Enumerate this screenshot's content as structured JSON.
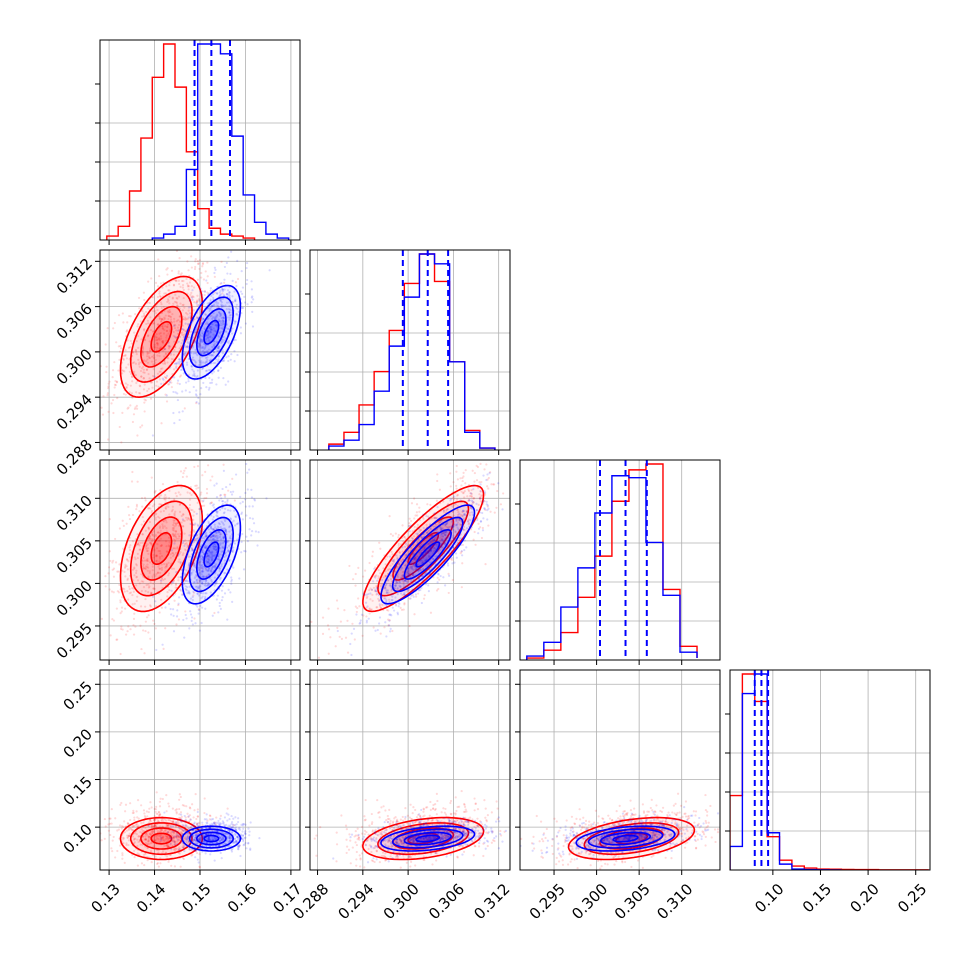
{
  "chart_data": {
    "type": "corner",
    "title": "",
    "n_params": 4,
    "grid": true,
    "colors": {
      "sample_a": "#ff0000",
      "sample_b": "#0000ff"
    },
    "quantile_line_style": "dashed",
    "params": [
      {
        "label": "",
        "range": [
          0.128,
          0.172
        ],
        "ticks": [
          0.13,
          0.14,
          0.15,
          0.16,
          0.17
        ],
        "tick_labels": [
          "0.13",
          "0.14",
          "0.15",
          "0.16",
          "0.17"
        ]
      },
      {
        "label": "",
        "range": [
          0.287,
          0.3135
        ],
        "ticks": [
          0.288,
          0.294,
          0.3,
          0.306,
          0.312
        ],
        "tick_labels": [
          "0.288",
          "0.294",
          "0.300",
          "0.306",
          "0.312"
        ]
      },
      {
        "label": "",
        "range": [
          0.291,
          0.3145
        ],
        "ticks": [
          0.295,
          0.3,
          0.305,
          0.31
        ],
        "tick_labels": [
          "0.295",
          "0.300",
          "0.305",
          "0.310"
        ]
      },
      {
        "label": "",
        "range": [
          0.055,
          0.265
        ],
        "ticks": [
          0.1,
          0.15,
          0.2,
          0.25
        ],
        "tick_labels": [
          "0.10",
          "0.15",
          "0.20",
          "0.25"
        ]
      }
    ],
    "series": [
      {
        "color": "#ff0000",
        "mean": [
          0.1415,
          0.302,
          0.3041,
          0.088
        ],
        "std": [
          0.0045,
          0.004,
          0.0037,
          0.011
        ],
        "corr": [
          [
            1,
            0.55,
            0.45,
            0.0
          ],
          [
            0.55,
            1,
            0.85,
            0.35
          ],
          [
            0.45,
            0.85,
            1,
            0.4
          ],
          [
            0.0,
            0.35,
            0.4,
            1
          ]
        ],
        "hist": [
          {
            "edges": [
              0.1295,
              0.132,
              0.1345,
              0.137,
              0.1395,
              0.142,
              0.1445,
              0.147,
              0.1495,
              0.152,
              0.1545,
              0.157,
              0.1595,
              0.162
            ],
            "counts": [
              0.02,
              0.07,
              0.25,
              0.52,
              0.83,
              1.0,
              0.78,
              0.45,
              0.16,
              0.06,
              0.03,
              0.02,
              0.01
            ]
          },
          {
            "edges": [
              0.2895,
              0.2915,
              0.2935,
              0.2955,
              0.2975,
              0.2995,
              0.3015,
              0.3035,
              0.3055,
              0.3075,
              0.3095,
              0.3115
            ],
            "counts": [
              0.03,
              0.09,
              0.23,
              0.4,
              0.61,
              0.85,
              1.0,
              0.86,
              0.45,
              0.1,
              0.01
            ]
          },
          {
            "edges": [
              0.2918,
              0.2938,
              0.2958,
              0.2978,
              0.2998,
              0.3018,
              0.3038,
              0.3058,
              0.3078,
              0.3098,
              0.3118
            ],
            "counts": [
              0.01,
              0.05,
              0.14,
              0.32,
              0.53,
              0.81,
              0.97,
              1.0,
              0.36,
              0.07,
              0.01
            ]
          },
          {
            "edges": [
              0.055,
              0.068,
              0.081,
              0.094,
              0.107,
              0.12,
              0.133,
              0.146,
              0.159,
              0.172,
              0.185,
              0.198,
              0.211,
              0.224,
              0.237,
              0.25,
              0.263
            ],
            "counts": [
              0.38,
              1.0,
              0.86,
              0.17,
              0.05,
              0.02,
              0.01,
              0.005,
              0.004,
              0.003,
              0.002,
              0.002,
              0.001,
              0.001,
              0.001,
              0.001
            ]
          }
        ]
      },
      {
        "color": "#0000ff",
        "mean": [
          0.1525,
          0.3026,
          0.3034,
          0.088
        ],
        "std": [
          0.0032,
          0.0031,
          0.0029,
          0.0065
        ],
        "corr": [
          [
            1,
            0.55,
            0.55,
            0.0
          ],
          [
            0.55,
            1,
            0.85,
            0.35
          ],
          [
            0.55,
            0.85,
            1,
            0.35
          ],
          [
            0.0,
            0.35,
            0.35,
            1
          ]
        ],
        "quantiles": [
          [
            0.1488,
            0.1525,
            0.1566
          ],
          [
            0.2993,
            0.3026,
            0.3053
          ],
          [
            0.3004,
            0.3034,
            0.3059
          ],
          [
            0.081,
            0.088,
            0.095
          ]
        ],
        "hist": [
          {
            "edges": [
              0.1395,
              0.142,
              0.1445,
              0.147,
              0.1495,
              0.152,
              0.1545,
              0.157,
              0.1595,
              0.162,
              0.1645,
              0.167,
              0.1695
            ],
            "counts": [
              0.01,
              0.03,
              0.07,
              0.36,
              1.0,
              1.0,
              0.95,
              0.53,
              0.23,
              0.09,
              0.03,
              0.01
            ]
          },
          {
            "edges": [
              0.2895,
              0.2915,
              0.2935,
              0.2955,
              0.2975,
              0.2995,
              0.3015,
              0.3035,
              0.3055,
              0.3075,
              0.3095,
              0.3115
            ],
            "counts": [
              0.02,
              0.05,
              0.13,
              0.3,
              0.53,
              0.78,
              1.0,
              0.95,
              0.45,
              0.09,
              0.01
            ]
          },
          {
            "edges": [
              0.2918,
              0.2938,
              0.2958,
              0.2978,
              0.2998,
              0.3018,
              0.3038,
              0.3058,
              0.3078,
              0.3098,
              0.3118
            ],
            "counts": [
              0.02,
              0.09,
              0.27,
              0.47,
              0.75,
              0.94,
              0.93,
              0.6,
              0.33,
              0.04,
              0.01
            ]
          },
          {
            "edges": [
              0.055,
              0.068,
              0.081,
              0.094,
              0.107,
              0.12,
              0.133,
              0.146,
              0.159,
              0.172
            ],
            "counts": [
              0.12,
              0.9,
              1.0,
              0.19,
              0.03,
              0.005,
              0.002,
              0.001,
              0.0
            ]
          }
        ]
      }
    ]
  }
}
